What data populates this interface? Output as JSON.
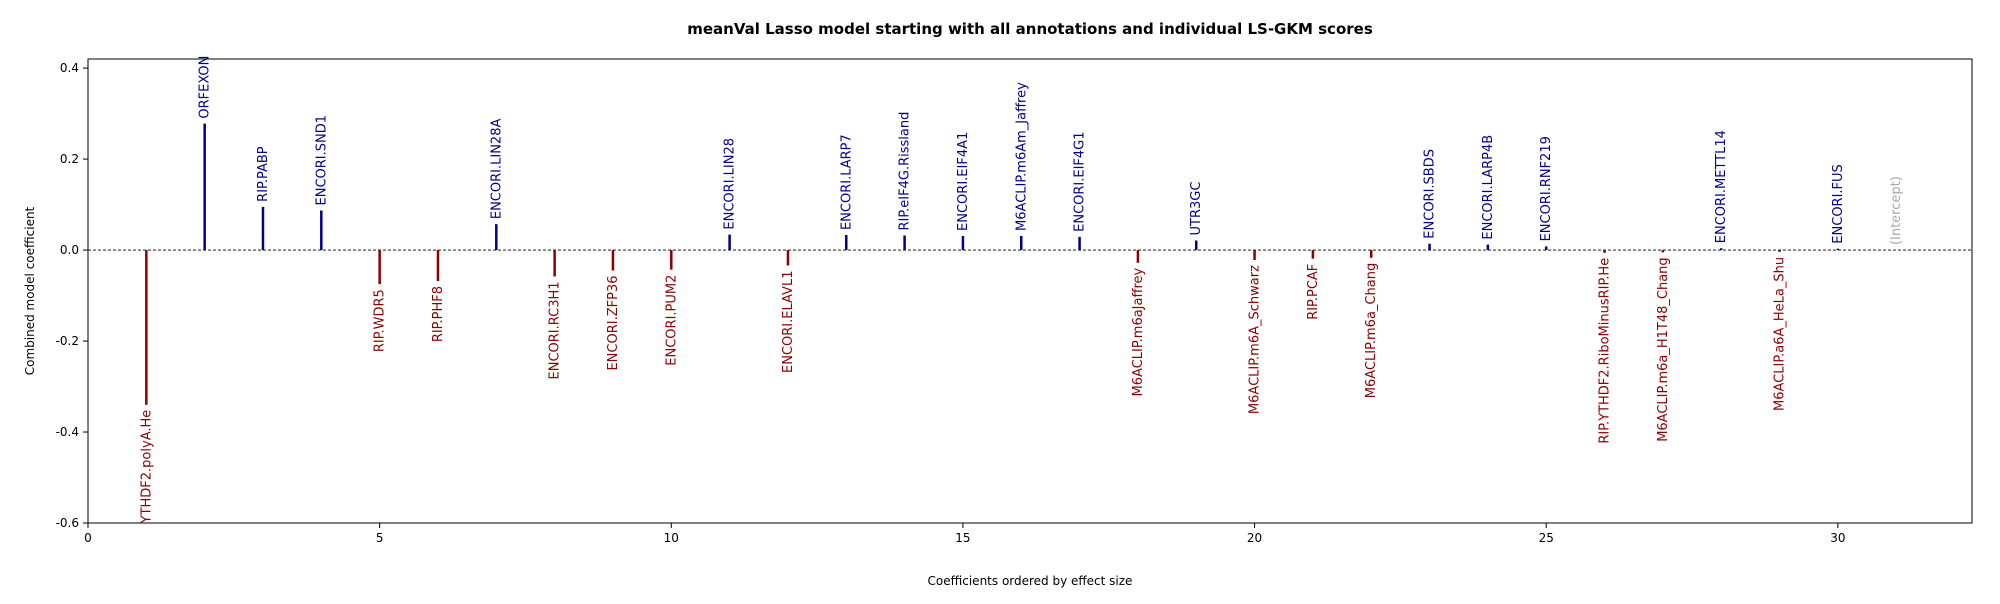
{
  "chart_data": {
    "type": "bar",
    "title": "meanVal Lasso model starting with all annotations and individual LS-GKM scores",
    "xlabel": "Coefficients ordered by effect size",
    "ylabel": "Combined model coefficient",
    "xlim": [
      0,
      32.3
    ],
    "ylim": [
      -0.6,
      0.42
    ],
    "xticks": [
      0,
      5,
      10,
      15,
      20,
      25,
      30
    ],
    "xtick_labels": [
      "0",
      "5",
      "10",
      "15",
      "20",
      "25",
      "30"
    ],
    "yticks": [
      -0.6,
      -0.4,
      -0.2,
      0.0,
      0.2,
      0.4
    ],
    "ytick_labels": [
      "-0.6",
      "-0.4",
      "-0.2",
      "0.0",
      "0.2",
      "0.4"
    ],
    "zero_line": "dashed",
    "grid": false,
    "colors": {
      "positive": "#00008b",
      "negative": "#8b0000",
      "intercept": "#a9a9a9"
    },
    "points": [
      {
        "x": 1,
        "label": "YTHDF2.polyA.He",
        "value": -0.34
      },
      {
        "x": 2,
        "label": "ORFEXON",
        "value": 0.278
      },
      {
        "x": 3,
        "label": "RIP.PABP",
        "value": 0.095
      },
      {
        "x": 4,
        "label": "ENCORI.SND1",
        "value": 0.087
      },
      {
        "x": 5,
        "label": "RIP.WDR5",
        "value": -0.075
      },
      {
        "x": 6,
        "label": "RIP.PHF8",
        "value": -0.068
      },
      {
        "x": 7,
        "label": "ENCORI.LIN28A",
        "value": 0.057
      },
      {
        "x": 8,
        "label": "ENCORI.RC3H1",
        "value": -0.058
      },
      {
        "x": 9,
        "label": "ENCORI.ZFP36",
        "value": -0.045
      },
      {
        "x": 10,
        "label": "ENCORI.PUM2",
        "value": -0.043
      },
      {
        "x": 11,
        "label": "ENCORI.LIN28",
        "value": 0.034
      },
      {
        "x": 12,
        "label": "ENCORI.ELAVL1",
        "value": -0.034
      },
      {
        "x": 13,
        "label": "ENCORI.LARP7",
        "value": 0.033
      },
      {
        "x": 14,
        "label": "RIP.eIF4G.Rissland",
        "value": 0.032
      },
      {
        "x": 15,
        "label": "ENCORI.EIF4A1",
        "value": 0.031
      },
      {
        "x": 16,
        "label": "M6ACLIP.m6Am_Jaffrey",
        "value": 0.031
      },
      {
        "x": 17,
        "label": "ENCORI.EIF4G1",
        "value": 0.029
      },
      {
        "x": 18,
        "label": "M6ACLIP.m6aJaffrey",
        "value": -0.028
      },
      {
        "x": 19,
        "label": "UTR3GC",
        "value": 0.021
      },
      {
        "x": 20,
        "label": "M6ACLIP.m6A_Schwarz",
        "value": -0.022
      },
      {
        "x": 21,
        "label": "RIP.PCAF",
        "value": -0.019
      },
      {
        "x": 22,
        "label": "M6ACLIP.m6a_Chang",
        "value": -0.017
      },
      {
        "x": 23,
        "label": "ENCORI.SBDS",
        "value": 0.014
      },
      {
        "x": 24,
        "label": "ENCORI.LARP4B",
        "value": 0.012
      },
      {
        "x": 25,
        "label": "ENCORI.RNF219",
        "value": 0.008
      },
      {
        "x": 26,
        "label": "RIP.YTHDF2.RiboMinusRIP.He",
        "value": -0.006
      },
      {
        "x": 27,
        "label": "M6ACLIP.m6a_H1T48_Chang",
        "value": -0.005
      },
      {
        "x": 28,
        "label": "ENCORI.METTL14",
        "value": 0.004
      },
      {
        "x": 29,
        "label": "M6ACLIP.a6A_HeLa_Shu",
        "value": -0.004
      },
      {
        "x": 30,
        "label": "ENCORI.FUS",
        "value": 0.003
      },
      {
        "x": 31,
        "label": "(Intercept)",
        "value": 0.0,
        "intercept": true
      }
    ]
  }
}
